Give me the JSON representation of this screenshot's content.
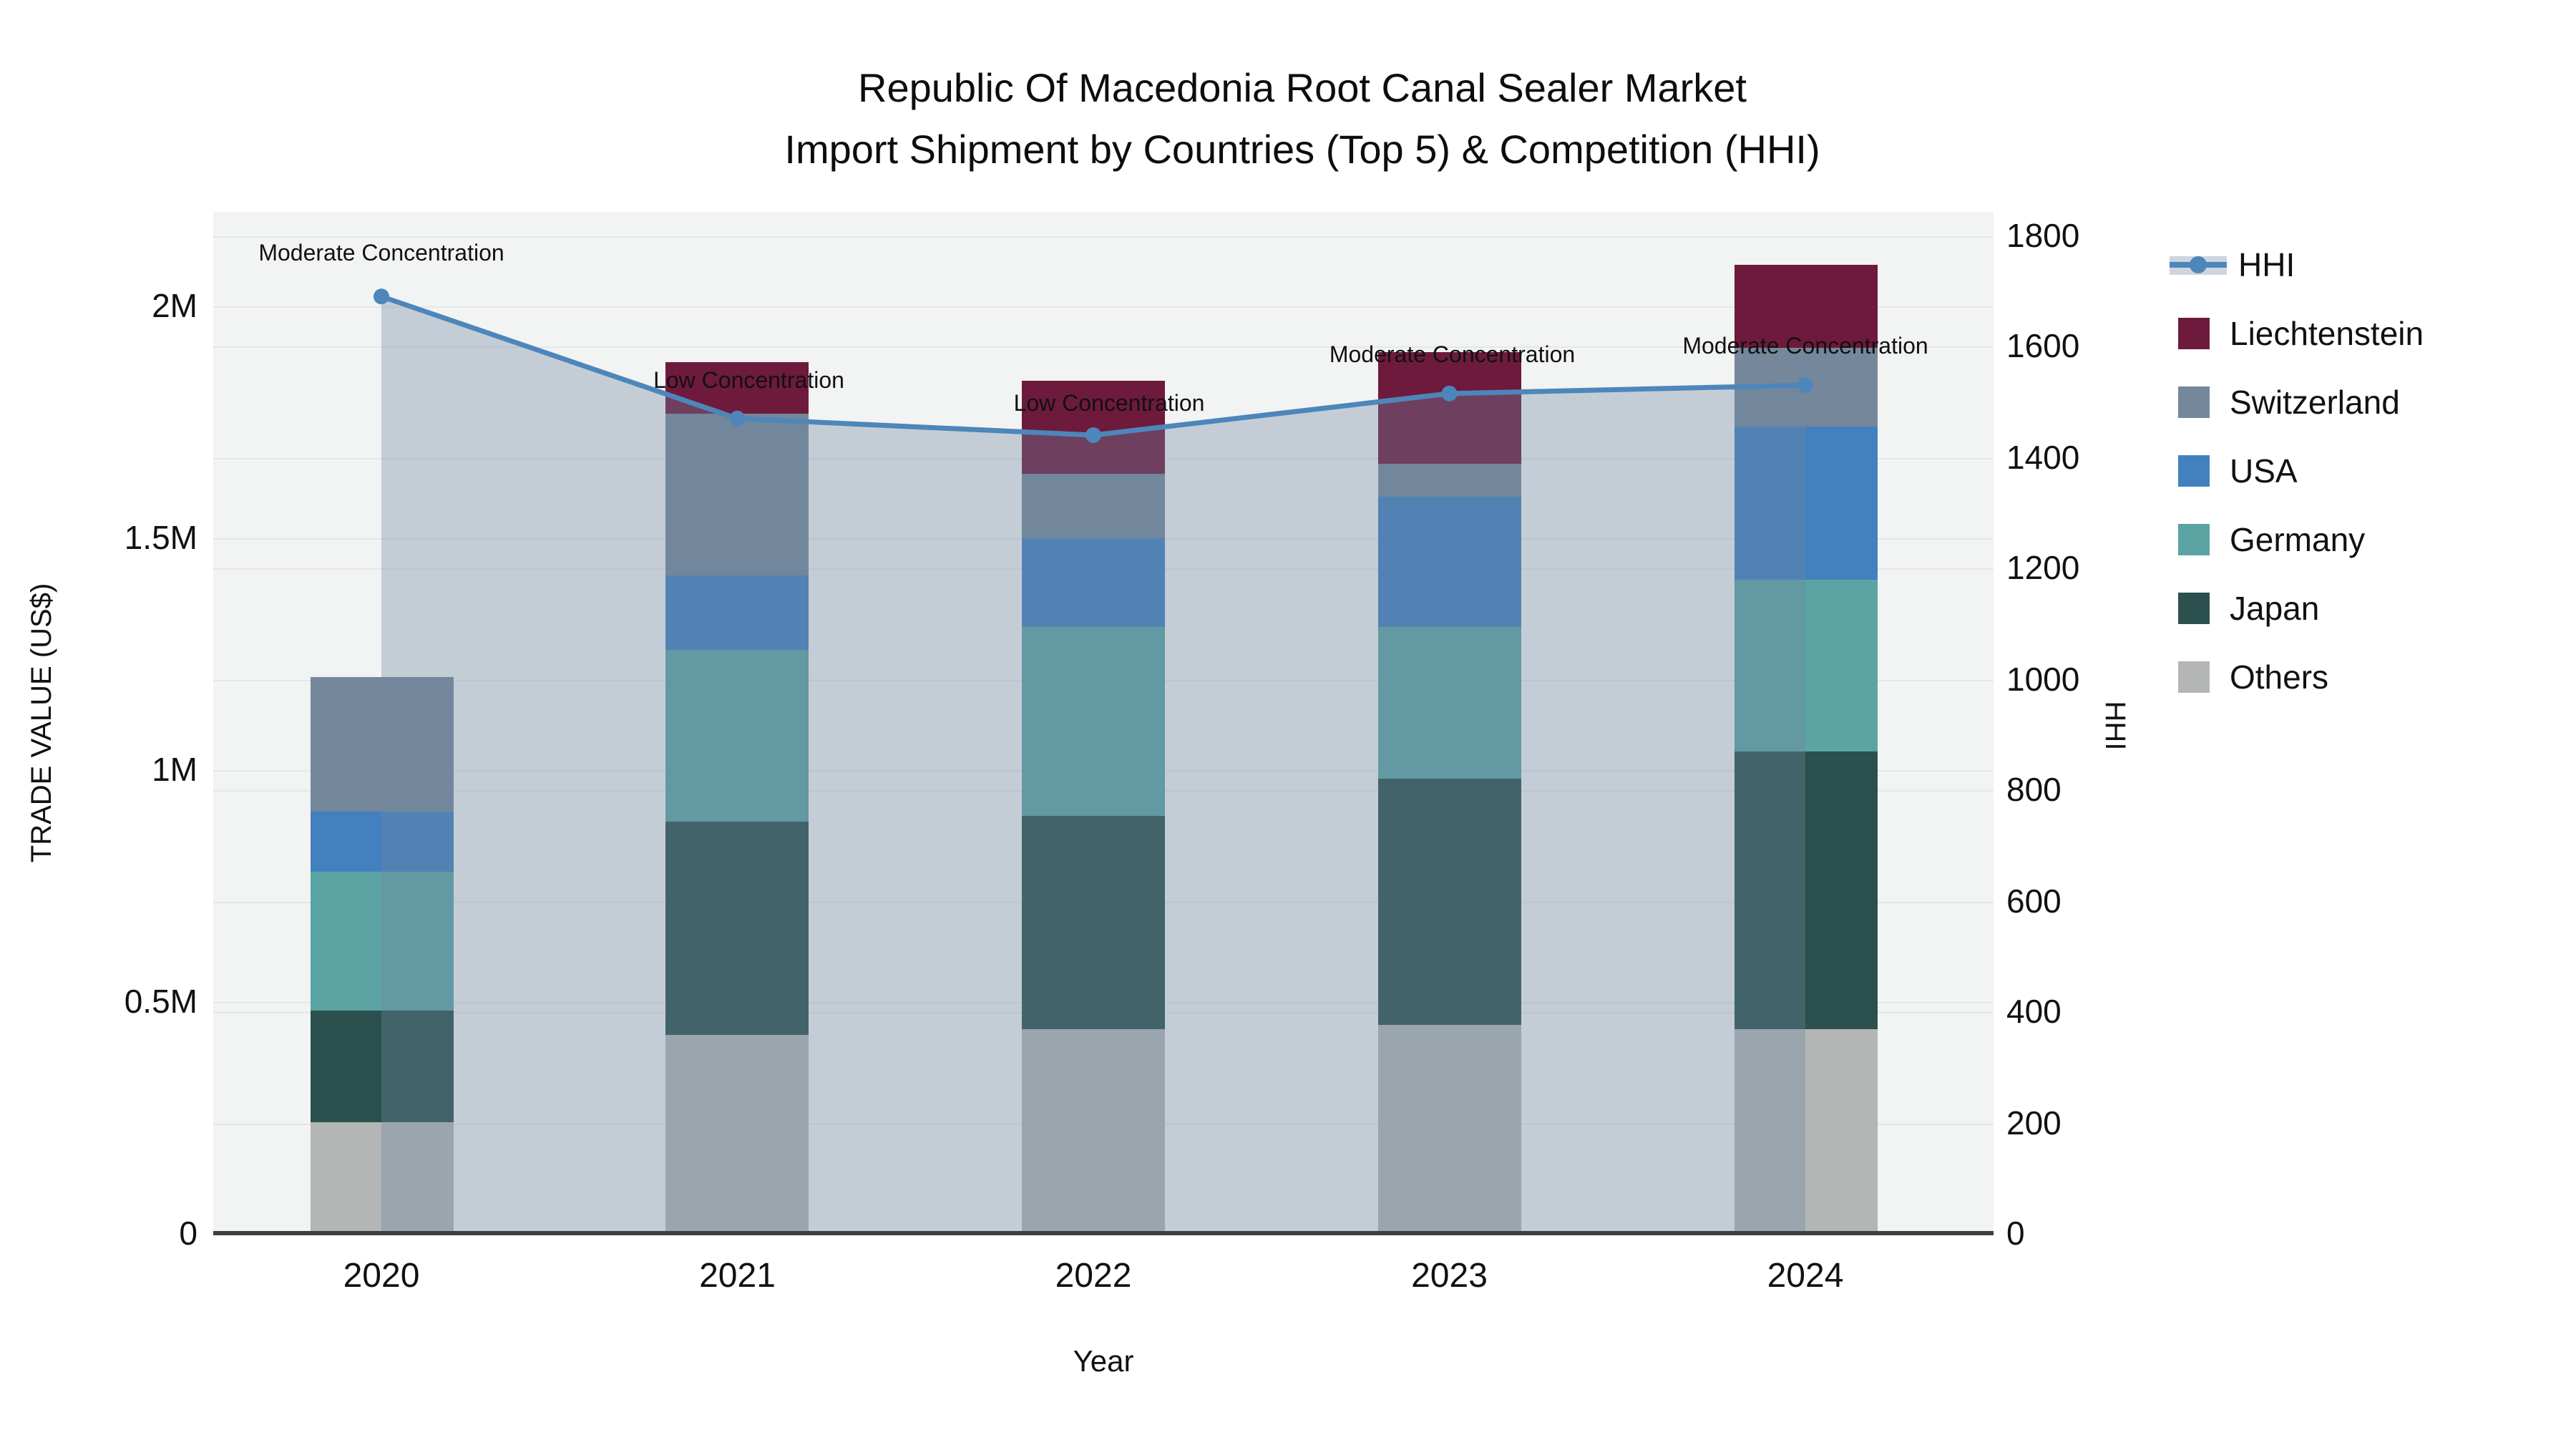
{
  "title": {
    "line1": "Republic Of Macedonia Root Canal Sealer Market",
    "line2": "Import Shipment by Countries (Top 5) & Competition (HHI)"
  },
  "chart_data": {
    "type": "stacked-bar+line",
    "categories": [
      "2020",
      "2021",
      "2022",
      "2023",
      "2024"
    ],
    "x_axis": {
      "title": "Year"
    },
    "y_left": {
      "title": "TRADE VALUE (US$)",
      "tick_labels": [
        "0",
        "0.5M",
        "1M",
        "1.5M",
        "2M"
      ],
      "tick_values": [
        0,
        500000,
        1000000,
        1500000,
        2000000
      ],
      "axis_max": 2203000
    },
    "y_right": {
      "title": "HHI",
      "tick_labels": [
        "0",
        "200",
        "400",
        "600",
        "800",
        "1000",
        "1200",
        "1400",
        "1600",
        "1800"
      ],
      "tick_values": [
        0,
        200,
        400,
        600,
        800,
        1000,
        1200,
        1400,
        1600,
        1800
      ],
      "axis_max": 1843
    },
    "series": [
      {
        "name": "Others",
        "color": "#b3b6b5",
        "values": [
          240000,
          430000,
          440000,
          450000,
          440000
        ]
      },
      {
        "name": "Japan",
        "color": "#2c504e",
        "values": [
          240000,
          460000,
          460000,
          530000,
          600000
        ]
      },
      {
        "name": "Germany",
        "color": "#5ca4a3",
        "values": [
          300000,
          370000,
          410000,
          330000,
          370000
        ]
      },
      {
        "name": "USA",
        "color": "#4380bf",
        "values": [
          130000,
          160000,
          190000,
          280000,
          330000
        ]
      },
      {
        "name": "Switzerland",
        "color": "#75879a",
        "values": [
          290000,
          350000,
          140000,
          70000,
          170000
        ]
      },
      {
        "name": "Liechtenstein",
        "color": "#6e1a3c",
        "values": [
          0,
          110000,
          200000,
          240000,
          180000
        ]
      }
    ],
    "line_series": {
      "name": "HHI",
      "color": "#4d86ba",
      "area_fill": "rgba(112,134,160,0.35)",
      "values": [
        1690,
        1470,
        1440,
        1515,
        1530
      ]
    },
    "annotations": [
      "Moderate Concentration",
      "Low Concentration",
      "Low Concentration",
      "Moderate Concentration",
      "Moderate Concentration"
    ],
    "legend_position": "right",
    "grid": true,
    "plot_background": "#f2f3f3"
  }
}
